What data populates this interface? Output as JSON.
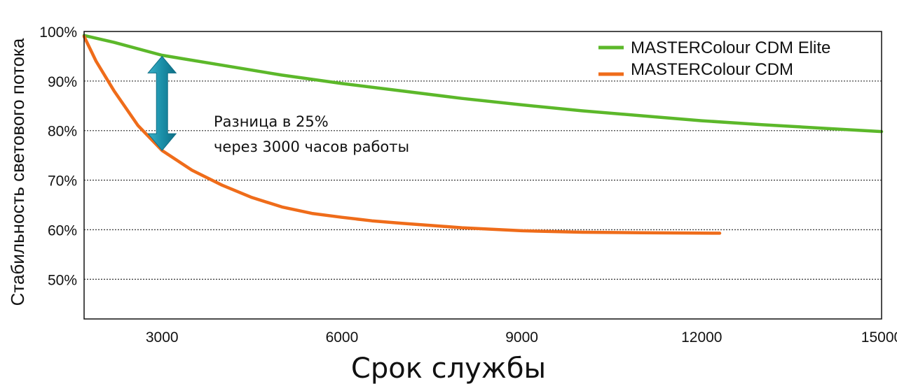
{
  "chart_data": {
    "type": "line",
    "title": "",
    "xlabel": "Срок службы",
    "ylabel": "Стабильность светового потока",
    "xlim": [
      1700,
      15000
    ],
    "ylim": [
      42,
      100
    ],
    "x_ticks": [
      3000,
      6000,
      9000,
      12000,
      15000
    ],
    "x_tick_labels": [
      "3000",
      "6000",
      "9000",
      "12000",
      "15000"
    ],
    "y_ticks": [
      100,
      90,
      80,
      70,
      60,
      50
    ],
    "y_tick_labels": [
      "100%",
      "90%",
      "80%",
      "70%",
      "60%",
      "50%"
    ],
    "grid": "horizontal dotted",
    "legend": "top-right",
    "series": [
      {
        "name": "MASTERColour CDM Elite",
        "color": "#5cb82a",
        "x": [
          1700,
          2200,
          3000,
          4000,
          5000,
          6000,
          7000,
          8000,
          9000,
          10000,
          11000,
          12000,
          13000,
          14000,
          15000
        ],
        "y": [
          99.2,
          97.8,
          95.2,
          93.2,
          91.2,
          89.5,
          88.0,
          86.5,
          85.2,
          84.0,
          83.0,
          82.0,
          81.2,
          80.5,
          79.8
        ]
      },
      {
        "name": "MASTERColour CDM",
        "color": "#ef6c1a",
        "x": [
          1700,
          1900,
          2200,
          2600,
          3000,
          3500,
          4000,
          4500,
          5000,
          5500,
          6000,
          6500,
          7000,
          8000,
          9000,
          10000,
          11000,
          12300
        ],
        "y": [
          99.0,
          94.0,
          88.0,
          81.0,
          76.0,
          72.0,
          69.0,
          66.5,
          64.6,
          63.3,
          62.5,
          61.8,
          61.3,
          60.4,
          59.8,
          59.5,
          59.4,
          59.3
        ]
      }
    ],
    "annotations": [
      {
        "text_lines": [
          "Разница в 25%",
          "через 3000 часов работы"
        ],
        "arrow": {
          "x": 3000,
          "y_from": 95,
          "y_to": 76,
          "style": "double-headed",
          "color": "#1a8fa8"
        }
      }
    ]
  }
}
